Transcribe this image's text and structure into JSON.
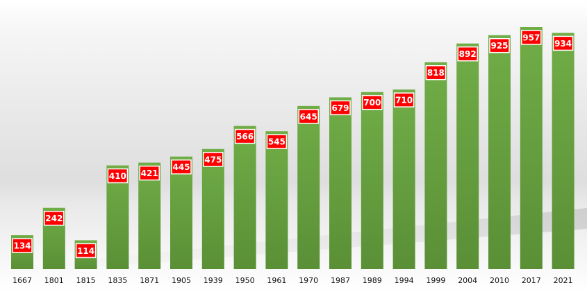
{
  "chart_data": {
    "type": "bar",
    "title": "",
    "xlabel": "",
    "ylabel": "",
    "categories": [
      "1667",
      "1801",
      "1815",
      "1835",
      "1871",
      "1905",
      "1939",
      "1950",
      "1961",
      "1970",
      "1987",
      "1989",
      "1994",
      "1999",
      "2004",
      "2010",
      "2017",
      "2021"
    ],
    "values": [
      134,
      242,
      114,
      410,
      421,
      445,
      475,
      566,
      545,
      645,
      679,
      700,
      710,
      818,
      892,
      925,
      957,
      934
    ],
    "ylim": [
      0,
      957
    ],
    "grid": false,
    "legend": "none",
    "data_labels": true
  },
  "colors": {
    "bar_top": "#70ad47",
    "bar_bottom": "#5a8f36",
    "label_box": "#ff0000",
    "label_text": "#ffffff",
    "tick_text": "#111111"
  }
}
